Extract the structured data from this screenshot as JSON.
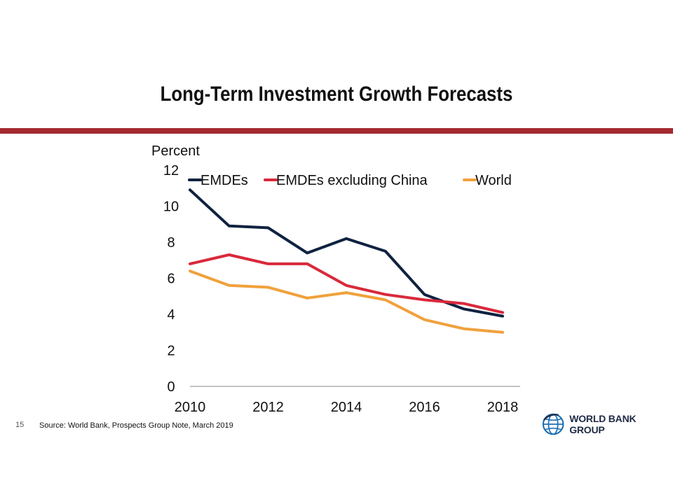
{
  "slide": {
    "title": "Long-Term Investment Growth Forecasts",
    "page_number": "15",
    "source": "Source: World Bank, Prospects Group Note, March 2019",
    "logo_text": "WORLD BANK GROUP",
    "colors": {
      "rule": "#a52a32",
      "logo_blue": "#1f6fb5",
      "logo_navy": "#1f2a44"
    }
  },
  "chart_data": {
    "type": "line",
    "title": "",
    "xlabel": "",
    "ylabel": "Percent",
    "x": [
      2010,
      2011,
      2012,
      2013,
      2014,
      2015,
      2016,
      2017,
      2018
    ],
    "x_ticks": [
      "2010",
      "2012",
      "2014",
      "2016",
      "2018"
    ],
    "y_ticks": [
      "0",
      "2",
      "4",
      "6",
      "8",
      "10",
      "12"
    ],
    "ylim": [
      0,
      12
    ],
    "grid": false,
    "legend_position": "top",
    "series": [
      {
        "name": "EMDEs",
        "color": "#0f2240",
        "values": [
          10.9,
          8.9,
          8.8,
          7.4,
          8.2,
          7.5,
          5.1,
          4.3,
          3.9
        ]
      },
      {
        "name": "EMDEs excluding China",
        "color": "#d9293b",
        "values": [
          6.8,
          7.3,
          6.8,
          6.8,
          5.6,
          5.1,
          4.8,
          4.6,
          4.1
        ]
      },
      {
        "name": "World",
        "color": "#f0a13c",
        "values": [
          6.4,
          5.6,
          5.5,
          4.9,
          5.2,
          4.8,
          3.7,
          3.2,
          3.0
        ]
      }
    ]
  }
}
